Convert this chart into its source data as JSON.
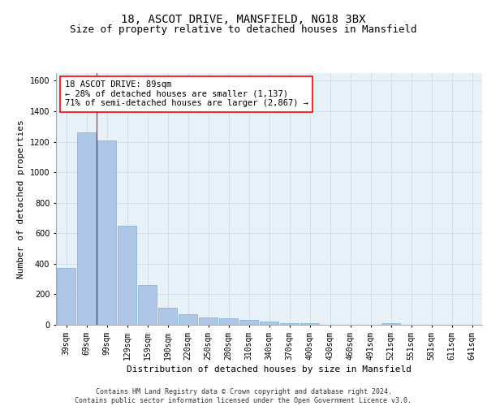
{
  "title1": "18, ASCOT DRIVE, MANSFIELD, NG18 3BX",
  "title2": "Size of property relative to detached houses in Mansfield",
  "xlabel": "Distribution of detached houses by size in Mansfield",
  "ylabel": "Number of detached properties",
  "categories": [
    "39sqm",
    "69sqm",
    "99sqm",
    "129sqm",
    "159sqm",
    "190sqm",
    "220sqm",
    "250sqm",
    "280sqm",
    "310sqm",
    "340sqm",
    "370sqm",
    "400sqm",
    "430sqm",
    "460sqm",
    "491sqm",
    "521sqm",
    "551sqm",
    "581sqm",
    "611sqm",
    "641sqm"
  ],
  "values": [
    370,
    1260,
    1210,
    650,
    260,
    110,
    70,
    50,
    40,
    30,
    20,
    10,
    10,
    0,
    0,
    0,
    10,
    0,
    0,
    0,
    0
  ],
  "bar_color": "#aec6e8",
  "bar_edge_color": "#7aafd4",
  "property_line_x": 1.5,
  "property_sqm": 89,
  "pct_smaller": 28,
  "n_smaller": 1137,
  "pct_larger": 71,
  "n_larger": 2867,
  "ylim": [
    0,
    1650
  ],
  "yticks": [
    0,
    200,
    400,
    600,
    800,
    1000,
    1200,
    1400,
    1600
  ],
  "grid_color": "#c8d8e8",
  "bg_color": "#e8f0f8",
  "footer": "Contains HM Land Registry data © Crown copyright and database right 2024.\nContains public sector information licensed under the Open Government Licence v3.0.",
  "title1_fontsize": 10,
  "title2_fontsize": 9,
  "xlabel_fontsize": 8,
  "ylabel_fontsize": 8,
  "tick_fontsize": 7,
  "annotation_fontsize": 7.5,
  "footer_fontsize": 6
}
